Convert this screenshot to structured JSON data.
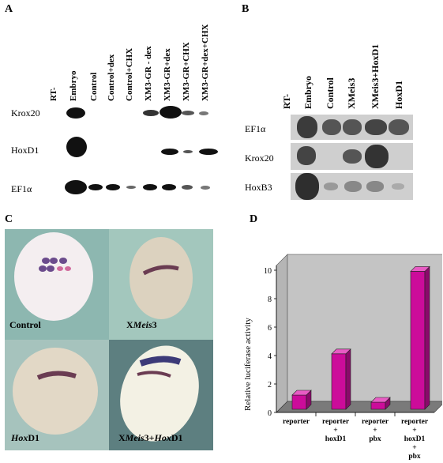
{
  "panelA": {
    "letter": "A",
    "lanes": [
      "RT-",
      "Embryo",
      "Control",
      "Control+dex",
      "Control+CHX",
      "XM3-GR - dex",
      "XM3-GR+dex",
      "XM3-GR+CHX",
      "XM3-GR+dex+CHX"
    ],
    "rows": [
      "Krox20",
      "HoxD1",
      "EF1α"
    ]
  },
  "panelB": {
    "letter": "B",
    "lanes": [
      "RT-",
      "Embryo",
      "Control",
      "XMeis3",
      "XMeis3+HoxD1",
      "HoxD1"
    ],
    "rows": [
      "EF1α",
      "Krox20",
      "HoxB3"
    ]
  },
  "panelC": {
    "letter": "C",
    "captions": {
      "control": "Control",
      "xmeis3_prefix": "X",
      "xmeis3_italic": "Meis",
      "xmeis3_suffix": "3",
      "hoxd1_italic": "Hox",
      "hoxd1_suffix": "D1",
      "combo_prefix": "X",
      "combo_italic1": "Meis",
      "combo_mid": "3+",
      "combo_italic2": "Hox",
      "combo_suffix": "D1"
    }
  },
  "panelD": {
    "letter": "D"
  },
  "chart_data": {
    "type": "bar",
    "ylabel": "Relative luciferase activity",
    "ylim": [
      0,
      10
    ],
    "yticks": [
      "0",
      "2",
      "4",
      "6",
      "8",
      "10"
    ],
    "categories": [
      "reporter",
      "reporter\n+\nhoxD1",
      "reporter\n+\npbx",
      "reporter\n+\nhoxD1\n+\npbx"
    ],
    "values": [
      1.0,
      3.9,
      0.5,
      9.7
    ],
    "colors": {
      "bar_front": "#cc0c9a",
      "bar_side": "#8a0a6a",
      "bar_top": "#e85cc4",
      "wall": "#c4c4c4",
      "floor": "#7a7a7a"
    }
  }
}
